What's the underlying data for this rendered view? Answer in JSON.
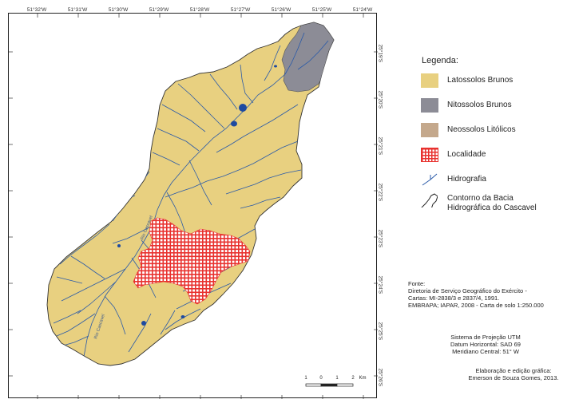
{
  "graticule": {
    "longitudes": [
      "51°32'W",
      "51°31'W",
      "51°30'W",
      "51°29'W",
      "51°28'W",
      "51°27'W",
      "51°26'W",
      "51°25'W",
      "51°24'W"
    ],
    "latitudes": [
      "25°19'S",
      "25°20'S",
      "25°21'S",
      "25°22'S",
      "25°23'S",
      "25°24'S",
      "25°25'S",
      "25°26'S"
    ]
  },
  "legend": {
    "title": "Legenda:",
    "items": [
      {
        "label": "Latossolos Brunos",
        "color": "#e8d080",
        "kind": "fill"
      },
      {
        "label": "Nitossolos Brunos",
        "color": "#8c8c96",
        "kind": "fill"
      },
      {
        "label": "Neossolos Litólicos",
        "color": "#c4a88c",
        "kind": "fill"
      },
      {
        "label": "Localidade",
        "color": "#e8312e",
        "kind": "grid"
      },
      {
        "label": "Hidrografia",
        "color": "#2a5aa8",
        "kind": "line"
      }
    ],
    "boundary": {
      "line1": "Contorno da Bacia",
      "line2": "Hidrográfica do Cascavel"
    }
  },
  "source": {
    "line1": "Fonte:",
    "line2": "Diretoria de Serviço Geográfico do Exército -",
    "line3": "Cartas: MI-2838/3 e 2837/4, 1991.",
    "line4": "EMBRAPA; IAPAR, 2008 - Carta de solo 1:250.000"
  },
  "projection": {
    "line1": "Sistema de Projeção UTM",
    "line2": "Datum Horizontal: SAD 69",
    "line3": "Meridiano Central: 51° W"
  },
  "credits": {
    "line1": "Elaboração e edição gráfica:",
    "line2": "Emerson de Souza Gomes, 2013."
  },
  "scalebar": {
    "labels": [
      "1",
      "0",
      "1",
      "2"
    ],
    "unit": "Km"
  },
  "map_labels": {
    "river": "Rio Cascavel"
  }
}
